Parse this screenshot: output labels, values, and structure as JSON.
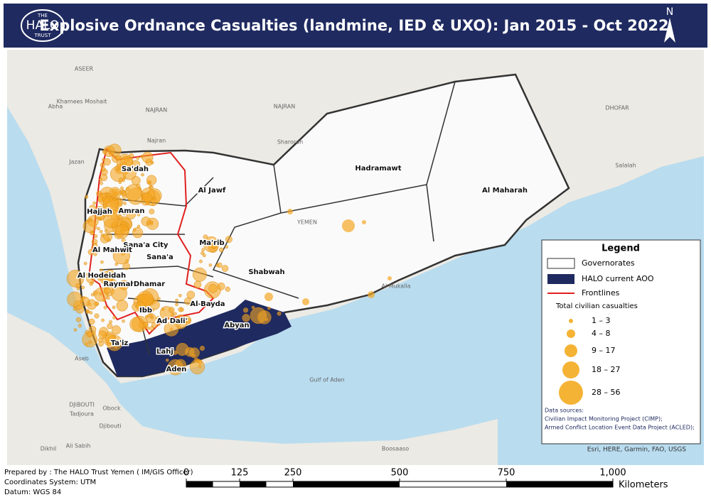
{
  "header": {
    "logo": [
      "THE",
      "HALO",
      "TRUST"
    ],
    "title": "Explosive Ordnance Casualties (landmine, IED & UXO): Jan 2015 - Oct 2022",
    "north": "N"
  },
  "map": {
    "labels": [
      "ASEER",
      "Khamees Moshait",
      "Abha",
      "NAJRAN",
      "NAJRAN",
      "Sharorah",
      "Najran",
      "Jazan",
      "Sa'dah",
      "Al Jawf",
      "Hadramawt",
      "Al Maharah",
      "DHOFAR",
      "Salalah",
      "Hajjah",
      "Amran",
      "YEMEN",
      "Ma'rib",
      "Sana'a City",
      "Al Mahwit",
      "Sana'a",
      "Al Hodeidah",
      "Shabwah",
      "Raymah",
      "Dhamar",
      "Al Mukalla",
      "Al Bayda",
      "Ibb",
      "Ad Dali'",
      "Abyan",
      "Ta'iz",
      "Lahj",
      "Aden",
      "Aseb",
      "Gulf of Aden",
      "DJIBOUTI",
      "Tadjoura",
      "Obock",
      "Djibouti",
      "Dikhil",
      "Ali Sabih",
      "Boosaaso"
    ]
  },
  "legend": {
    "title": "Legend",
    "items": [
      "Governorates",
      "HALO current AOO",
      "Frontlines"
    ],
    "size_title": "Total civilian casualties",
    "size_classes": [
      "1 – 3",
      "4 – 8",
      "9 – 17",
      "18 – 27",
      "28 – 56"
    ],
    "sources_title": "Data sources:",
    "sources": [
      "Civilian Impact Monitoring Project (CIMP);",
      "Armed Conflict Location Event Data Project (ACLED);"
    ],
    "credit": "Esri, HERE, Garmin, FAO, USGS"
  },
  "footer": {
    "lines": [
      "Prepared by : The HALO Trust Yemen ( IM/GIS Officer)",
      "Coordinates System: UTM",
      "Datum: WGS 84"
    ]
  },
  "scale": {
    "ticks": [
      0,
      125,
      250,
      500,
      750,
      {
        "value": 1000,
        "label": "1,000"
      }
    ],
    "unit": "Kilometers"
  }
}
